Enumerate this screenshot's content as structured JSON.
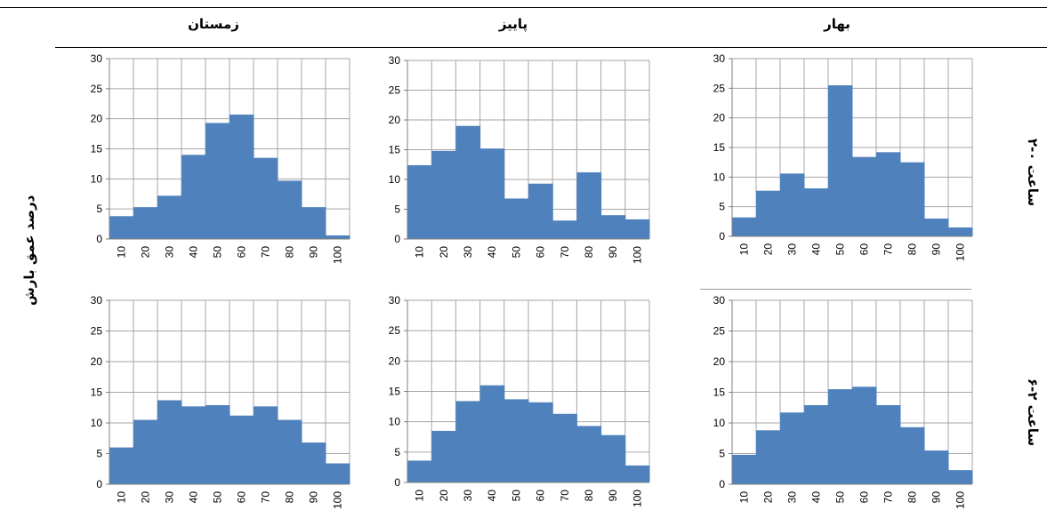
{
  "y_axis_title": "درصد عمق بارش",
  "columns": [
    "زمستان",
    "پاییز",
    "بهار"
  ],
  "rows": [
    "۲-۰ ساعت",
    "۶-۲ ساعت"
  ],
  "colors": {
    "bar": "#4F81BD",
    "grid": "#A6A6A6",
    "highlight": "#7FA3D6"
  },
  "chart_data": [
    {
      "type": "bar",
      "title": "",
      "xlabel": "",
      "ylabel": "",
      "categories": [
        "10",
        "20",
        "30",
        "40",
        "50",
        "60",
        "70",
        "80",
        "90",
        "100"
      ],
      "ylim": [
        0,
        30
      ],
      "yticks": [
        0,
        5,
        10,
        15,
        20,
        25,
        30
      ],
      "grid": true,
      "values": [
        3.8,
        5.3,
        7.2,
        14.0,
        19.3,
        20.7,
        13.5,
        9.7,
        5.3,
        0.6
      ]
    },
    {
      "type": "bar",
      "title": "",
      "xlabel": "",
      "ylabel": "",
      "categories": [
        "10",
        "20",
        "30",
        "40",
        "50",
        "60",
        "70",
        "80",
        "90",
        "100"
      ],
      "ylim": [
        0,
        30
      ],
      "yticks": [
        0,
        5,
        10,
        15,
        20,
        25,
        30
      ],
      "grid": true,
      "values": [
        12.4,
        14.8,
        19.0,
        15.2,
        6.8,
        9.3,
        3.1,
        11.2,
        4.0,
        3.3
      ]
    },
    {
      "type": "bar",
      "title": "",
      "xlabel": "",
      "ylabel": "",
      "categories": [
        "10",
        "20",
        "30",
        "40",
        "50",
        "60",
        "70",
        "80",
        "90",
        "100"
      ],
      "ylim": [
        0,
        30
      ],
      "yticks": [
        0,
        5,
        10,
        15,
        20,
        25,
        30
      ],
      "grid": true,
      "values": [
        3.2,
        7.7,
        10.6,
        8.1,
        25.5,
        13.4,
        14.2,
        12.5,
        3.0,
        1.5
      ]
    },
    {
      "type": "bar",
      "title": "",
      "xlabel": "",
      "ylabel": "",
      "categories": [
        "10",
        "20",
        "30",
        "40",
        "50",
        "60",
        "70",
        "80",
        "90",
        "100"
      ],
      "ylim": [
        0,
        30
      ],
      "yticks": [
        0,
        5,
        10,
        15,
        20,
        25,
        30
      ],
      "grid": true,
      "values": [
        6.0,
        10.5,
        13.7,
        12.7,
        12.9,
        11.2,
        12.7,
        10.5,
        6.8,
        3.4
      ]
    },
    {
      "type": "bar",
      "title": "",
      "xlabel": "",
      "ylabel": "",
      "categories": [
        "10",
        "20",
        "30",
        "40",
        "50",
        "60",
        "70",
        "80",
        "90",
        "100"
      ],
      "ylim": [
        0,
        30
      ],
      "yticks": [
        0,
        5,
        10,
        15,
        20,
        25,
        30
      ],
      "grid": true,
      "values": [
        3.6,
        8.5,
        13.4,
        16.0,
        13.7,
        13.2,
        11.3,
        9.3,
        7.8,
        2.8
      ]
    },
    {
      "type": "bar",
      "title": "",
      "xlabel": "",
      "ylabel": "",
      "categories": [
        "10",
        "20",
        "30",
        "40",
        "50",
        "60",
        "70",
        "80",
        "90",
        "100"
      ],
      "ylim": [
        0,
        30
      ],
      "yticks": [
        0,
        5,
        10,
        15,
        20,
        25,
        30
      ],
      "grid": true,
      "values": [
        4.8,
        8.8,
        11.7,
        12.9,
        15.5,
        15.9,
        12.9,
        9.3,
        5.5,
        2.3
      ]
    }
  ]
}
